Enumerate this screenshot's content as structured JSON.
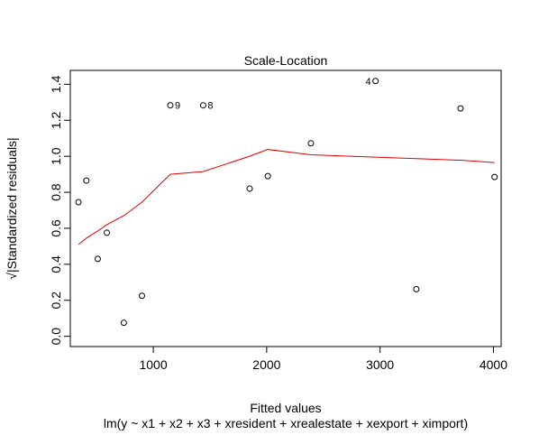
{
  "chart_data": {
    "type": "scatter",
    "title": "Scale-Location",
    "xlabel": "Fitted values",
    "subtitle": "lm(y ~ x1 + x2 + x3 + xresident + xrealestate + xexport + ximport)",
    "ylabel": "√|Standardized residuals|",
    "xlim": [
      268,
      4068
    ],
    "ylim": [
      -0.057,
      1.477
    ],
    "x_ticks": [
      1000,
      2000,
      3000,
      4000
    ],
    "y_ticks": [
      0.0,
      0.2,
      0.4,
      0.6,
      0.8,
      1.0,
      1.2,
      1.4
    ],
    "points": [
      {
        "x": 340,
        "y": 0.745
      },
      {
        "x": 410,
        "y": 0.865
      },
      {
        "x": 510,
        "y": 0.43
      },
      {
        "x": 590,
        "y": 0.575
      },
      {
        "x": 740,
        "y": 0.075
      },
      {
        "x": 900,
        "y": 0.225
      },
      {
        "x": 1150,
        "y": 1.283,
        "label": "9"
      },
      {
        "x": 1440,
        "y": 1.283,
        "label": "8"
      },
      {
        "x": 1850,
        "y": 0.82
      },
      {
        "x": 2010,
        "y": 0.89
      },
      {
        "x": 2390,
        "y": 1.072
      },
      {
        "x": 2960,
        "y": 1.418,
        "label": "4"
      },
      {
        "x": 3320,
        "y": 0.262
      },
      {
        "x": 3710,
        "y": 1.266
      },
      {
        "x": 4010,
        "y": 0.885
      }
    ],
    "smoother": {
      "color": "#e00000",
      "x": [
        340,
        410,
        510,
        590,
        740,
        900,
        1150,
        1440,
        1850,
        2010,
        2390,
        2960,
        3320,
        3710,
        4010
      ],
      "y": [
        0.51,
        0.545,
        0.585,
        0.62,
        0.67,
        0.745,
        0.9,
        0.915,
        1.0,
        1.038,
        1.008,
        0.995,
        0.987,
        0.978,
        0.965
      ]
    },
    "grid": false,
    "legend": "none"
  }
}
